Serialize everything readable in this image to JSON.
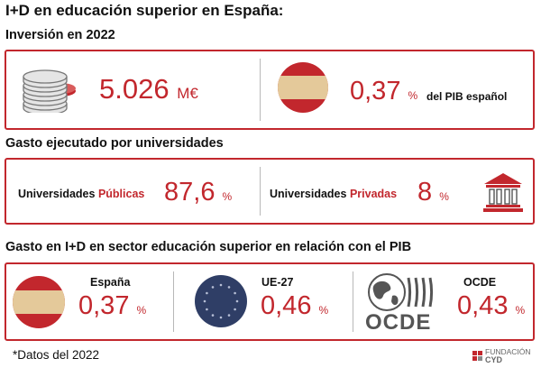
{
  "title": "I+D en educación superior en España:",
  "section1": {
    "title": "Inversión en 2022",
    "investment_value": "5.026",
    "investment_unit": "M€",
    "gdp_value": "0,37",
    "gdp_unit": "%",
    "gdp_label": "del PIB español",
    "coins_icon": "coins-icon",
    "flag_icon": "spain-flag-icon"
  },
  "section2": {
    "title": "Gasto ejecutado por universidades",
    "public_prefix": "Universidades ",
    "public_word": "Públicas",
    "public_value": "87,6",
    "public_unit": "%",
    "private_prefix": "Universidades ",
    "private_word": "Privadas",
    "private_value": "8",
    "private_unit": "%",
    "building_icon": "university-building-icon"
  },
  "section3": {
    "title": "Gasto en I+D en sector educación superior en relación con el PIB",
    "spain_label": "España",
    "spain_value": "0,37",
    "spain_unit": "%",
    "eu_label": "UE-27",
    "eu_value": "0,46",
    "eu_unit": "%",
    "oecd_label": "OCDE",
    "oecd_value": "0,43",
    "oecd_unit": "%",
    "oecd_logo_text": "OCDE"
  },
  "footnote": "*Datos del 2022",
  "brand": {
    "line1": "FUNDACIÓN",
    "line2": "CYD"
  },
  "colors": {
    "accent": "#c2272d",
    "flag_yellow": "#e4c99a",
    "eu_blue": "#2f3e66",
    "gray": "#555555"
  }
}
